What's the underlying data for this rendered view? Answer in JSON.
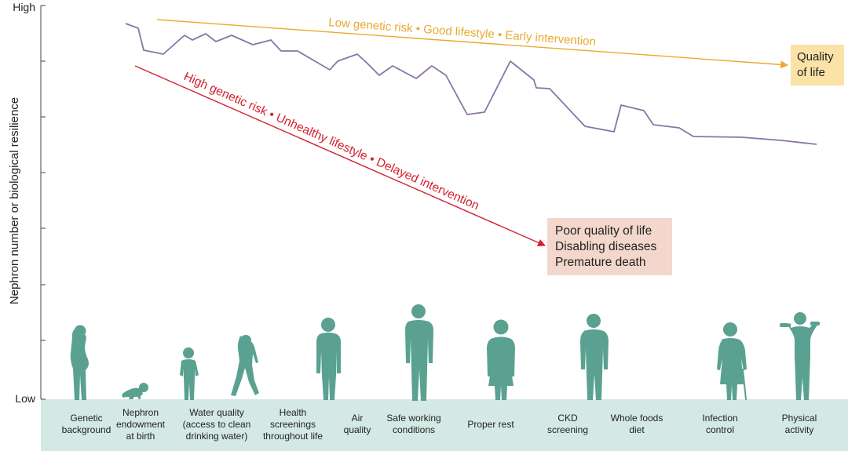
{
  "axis": {
    "y_label": "Nephron number or biological resilience",
    "high_label": "High",
    "low_label": "Low"
  },
  "arrows": {
    "good_path_label": "Low genetic risk • Good lifestyle • Early intervention",
    "bad_path_label": "High genetic risk • Unhealthy lifestyle • Delayed intervention"
  },
  "outcomes": {
    "good": [
      "Quality",
      "of life"
    ],
    "poor": [
      "Poor quality of life",
      "Disabling diseases",
      "Premature death"
    ]
  },
  "factors": [
    [
      "Genetic",
      "background"
    ],
    [
      "Nephron",
      "endowment",
      "at birth"
    ],
    [
      "Water quality",
      "(access to clean",
      "drinking water)"
    ],
    [
      "Health",
      "screenings",
      "throughout life"
    ],
    [
      "Air",
      "quality"
    ],
    [
      "Safe working",
      "conditions"
    ],
    [
      "Proper rest"
    ],
    [
      "CKD",
      "screening"
    ],
    [
      "Whole foods",
      "diet"
    ],
    [
      "Infection",
      "control"
    ],
    [
      "Physical",
      "activity"
    ]
  ],
  "colors": {
    "good_arrow": "#e9a930",
    "bad_arrow": "#d4202f",
    "resilience_line": "#8b74a6",
    "silhouette": "#5aa191",
    "ground_band": "#d4e9e4",
    "good_box": "#fbe2a6",
    "poor_box": "#f3d6cc"
  },
  "figures": [
    "pregnant-woman",
    "crawling-baby",
    "toddler",
    "walking-child",
    "teen",
    "adult-man",
    "young-woman",
    "middle-aged-man",
    "mature-man",
    "elderly-woman-with-cane",
    "senior-lifting-dumbbells"
  ]
}
